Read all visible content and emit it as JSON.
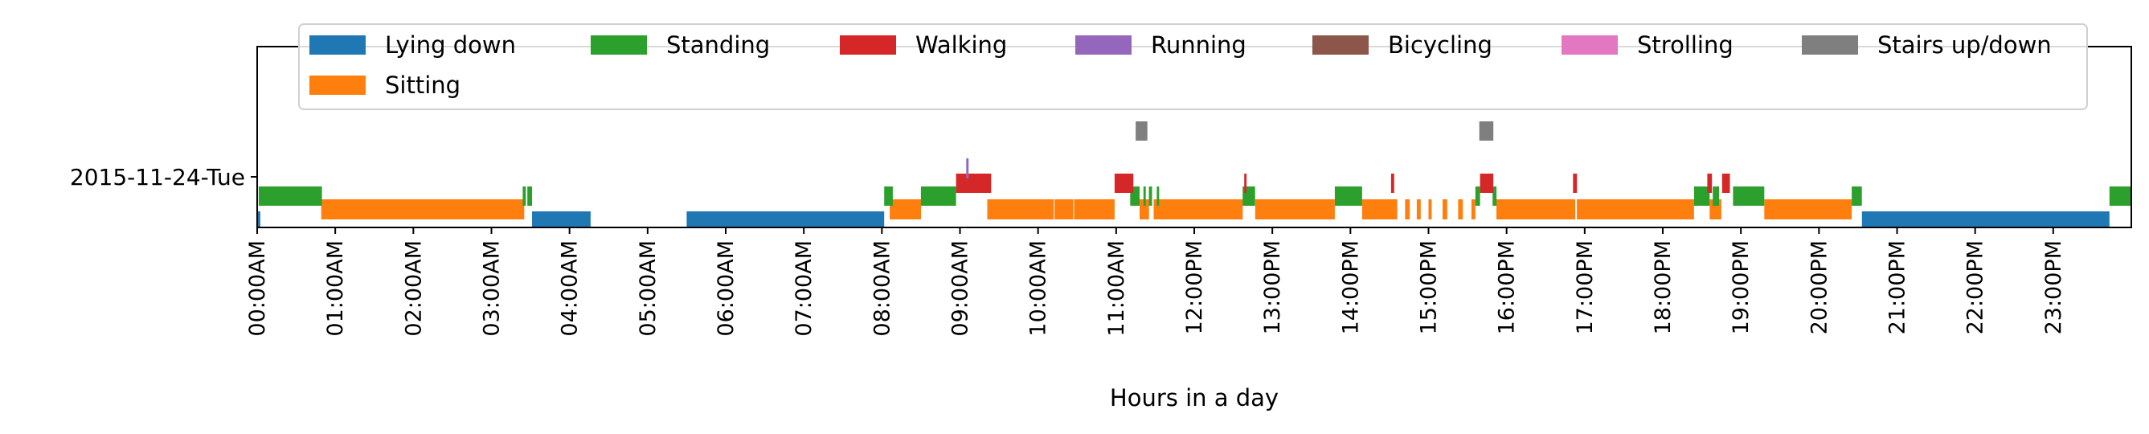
{
  "chart_data": {
    "type": "timeline",
    "xlabel": "Hours in a day",
    "row_label": "2015-11-24-Tue",
    "x_tick_labels": [
      "00:00AM",
      "01:00AM",
      "02:00AM",
      "03:00AM",
      "04:00AM",
      "05:00AM",
      "06:00AM",
      "07:00AM",
      "08:00AM",
      "09:00AM",
      "10:00AM",
      "11:00AM",
      "12:00PM",
      "13:00PM",
      "14:00PM",
      "15:00PM",
      "16:00PM",
      "17:00PM",
      "18:00PM",
      "19:00PM",
      "20:00PM",
      "21:00PM",
      "22:00PM",
      "23:00PM"
    ],
    "legend_position": "top",
    "grid": false,
    "activities": [
      {
        "name": "Lying down",
        "color": "#1f77b4"
      },
      {
        "name": "Standing",
        "color": "#2ca02c"
      },
      {
        "name": "Walking",
        "color": "#d62728"
      },
      {
        "name": "Running",
        "color": "#9467bd"
      },
      {
        "name": "Bicycling",
        "color": "#8c564b"
      },
      {
        "name": "Strolling",
        "color": "#e377c2"
      },
      {
        "name": "Stairs up/down",
        "color": "#7f7f7f"
      },
      {
        "name": "Sitting",
        "color": "#ff7f0e"
      }
    ],
    "segments": [
      {
        "activity": "Lying down",
        "start": 0.0,
        "end": 0.04
      },
      {
        "activity": "Lying down",
        "start": 3.52,
        "end": 4.27
      },
      {
        "activity": "Lying down",
        "start": 5.5,
        "end": 8.03
      },
      {
        "activity": "Lying down",
        "start": 20.55,
        "end": 23.72
      },
      {
        "activity": "Sitting",
        "start": 0.82,
        "end": 3.42
      },
      {
        "activity": "Sitting",
        "start": 8.1,
        "end": 8.5
      },
      {
        "activity": "Sitting",
        "start": 9.35,
        "end": 10.2
      },
      {
        "activity": "Sitting",
        "start": 10.21,
        "end": 10.45
      },
      {
        "activity": "Sitting",
        "start": 10.46,
        "end": 10.98
      },
      {
        "activity": "Sitting",
        "start": 11.3,
        "end": 11.42
      },
      {
        "activity": "Sitting",
        "start": 11.48,
        "end": 12.62
      },
      {
        "activity": "Sitting",
        "start": 12.78,
        "end": 13.8
      },
      {
        "activity": "Sitting",
        "start": 14.15,
        "end": 14.6
      },
      {
        "activity": "Sitting",
        "start": 14.7,
        "end": 14.76
      },
      {
        "activity": "Sitting",
        "start": 14.85,
        "end": 14.9
      },
      {
        "activity": "Sitting",
        "start": 15.0,
        "end": 15.04
      },
      {
        "activity": "Sitting",
        "start": 15.18,
        "end": 15.24
      },
      {
        "activity": "Sitting",
        "start": 15.38,
        "end": 15.44
      },
      {
        "activity": "Sitting",
        "start": 15.55,
        "end": 15.6
      },
      {
        "activity": "Sitting",
        "start": 15.87,
        "end": 16.88
      },
      {
        "activity": "Sitting",
        "start": 16.9,
        "end": 18.4
      },
      {
        "activity": "Sitting",
        "start": 18.6,
        "end": 18.75
      },
      {
        "activity": "Sitting",
        "start": 19.3,
        "end": 20.42
      },
      {
        "activity": "Standing",
        "start": 0.02,
        "end": 0.83
      },
      {
        "activity": "Standing",
        "start": 3.4,
        "end": 3.44
      },
      {
        "activity": "Standing",
        "start": 3.46,
        "end": 3.52
      },
      {
        "activity": "Standing",
        "start": 8.03,
        "end": 8.14
      },
      {
        "activity": "Standing",
        "start": 8.5,
        "end": 8.95
      },
      {
        "activity": "Standing",
        "start": 11.18,
        "end": 11.3
      },
      {
        "activity": "Standing",
        "start": 11.35,
        "end": 11.38
      },
      {
        "activity": "Standing",
        "start": 11.42,
        "end": 11.46
      },
      {
        "activity": "Standing",
        "start": 11.52,
        "end": 11.55
      },
      {
        "activity": "Standing",
        "start": 12.62,
        "end": 12.78
      },
      {
        "activity": "Standing",
        "start": 13.8,
        "end": 14.15
      },
      {
        "activity": "Standing",
        "start": 15.6,
        "end": 15.66
      },
      {
        "activity": "Standing",
        "start": 15.82,
        "end": 15.87
      },
      {
        "activity": "Standing",
        "start": 18.4,
        "end": 18.6
      },
      {
        "activity": "Standing",
        "start": 18.64,
        "end": 18.72
      },
      {
        "activity": "Standing",
        "start": 18.9,
        "end": 19.3
      },
      {
        "activity": "Standing",
        "start": 20.42,
        "end": 20.55
      },
      {
        "activity": "Standing",
        "start": 23.72,
        "end": 24.0
      },
      {
        "activity": "Walking",
        "start": 8.95,
        "end": 9.4
      },
      {
        "activity": "Walking",
        "start": 10.98,
        "end": 11.22
      },
      {
        "activity": "Walking",
        "start": 12.64,
        "end": 12.67
      },
      {
        "activity": "Walking",
        "start": 14.52,
        "end": 14.56
      },
      {
        "activity": "Walking",
        "start": 15.66,
        "end": 15.83
      },
      {
        "activity": "Walking",
        "start": 16.85,
        "end": 16.9
      },
      {
        "activity": "Walking",
        "start": 18.57,
        "end": 18.63
      },
      {
        "activity": "Walking",
        "start": 18.76,
        "end": 18.86
      },
      {
        "activity": "Running",
        "start": 9.08,
        "end": 9.11
      },
      {
        "activity": "Stairs up/down",
        "start": 11.25,
        "end": 11.4
      },
      {
        "activity": "Stairs up/down",
        "start": 15.65,
        "end": 15.83
      }
    ]
  }
}
